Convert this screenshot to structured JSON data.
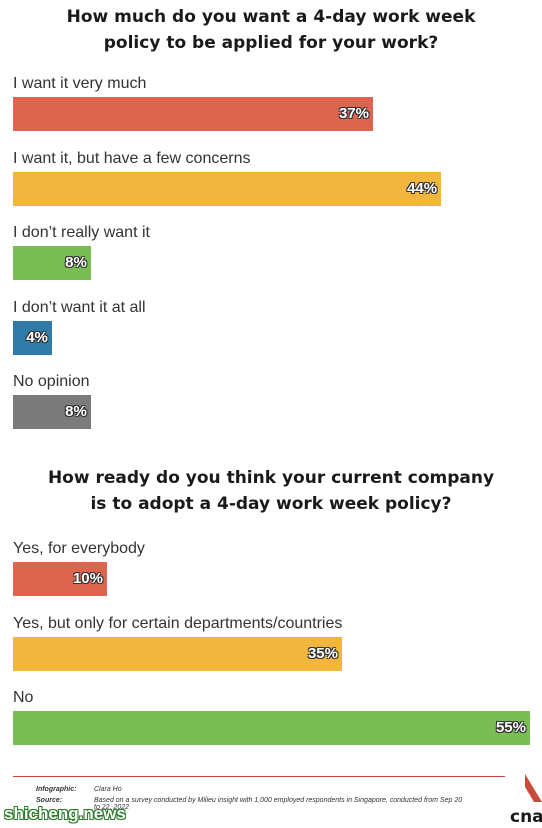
{
  "colors": {
    "red": "#dd6550",
    "yellow": "#f2b63e",
    "green": "#7bbd55",
    "blue": "#2f7aa6",
    "grey": "#7b7b7b",
    "brand": "#c94a3a"
  },
  "chart_data": [
    {
      "type": "bar",
      "orientation": "horizontal",
      "title_lines": [
        "How much do you want a 4-day work week",
        "policy to be applied for your work?"
      ],
      "categories": [
        "I want it very much",
        "I want it, but have a few concerns",
        "I don’t really want it",
        "I don’t want it at all",
        "No opinion"
      ],
      "values": [
        37,
        44,
        8,
        4,
        8
      ],
      "value_labels": [
        "37%",
        "44%",
        "8%",
        "4%",
        "8%"
      ],
      "bar_colors": [
        "red",
        "yellow",
        "green",
        "blue",
        "grey"
      ]
    },
    {
      "type": "bar",
      "orientation": "horizontal",
      "title_lines": [
        "How ready do you think your current company",
        "is to adopt a 4-day work week policy?"
      ],
      "categories": [
        "Yes, for everybody",
        "Yes, but only for certain departments/countries",
        "No"
      ],
      "values": [
        10,
        35,
        55
      ],
      "value_labels": [
        "10%",
        "35%",
        "55%"
      ],
      "bar_colors": [
        "red",
        "yellow",
        "green"
      ]
    }
  ],
  "credits": {
    "infographic_key": "Infographic:",
    "infographic_value": "Clara Ho",
    "source_key": "Source:",
    "source_value": "Based on a survey conducted by Milieu insight with 1,000 employed respondents in Singapore, conducted from Sep 20 to 22, 2022"
  },
  "watermark": "shicheng.news",
  "logo_text": "cna"
}
